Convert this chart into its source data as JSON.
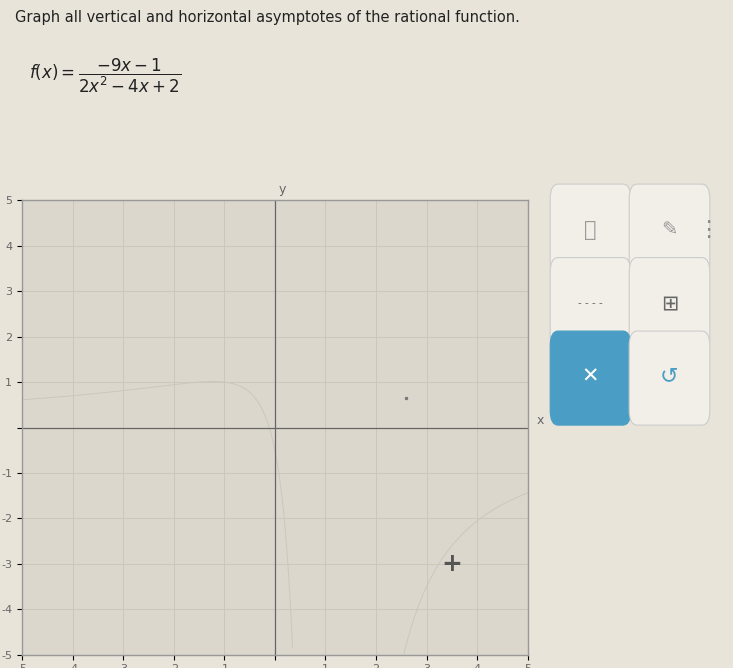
{
  "title_text": "Graph all vertical and horizontal asymptotes of the rational function.",
  "xmin": -5,
  "xmax": 5,
  "ymin": -5,
  "ymax": 5,
  "background_color": "#e8e4da",
  "grid_color": "#c9c5bb",
  "axis_color": "#666666",
  "tick_label_color": "#666666",
  "plot_bg": "#dbd7cd",
  "border_color": "#999999",
  "toolbar_bg": "#eeebe5",
  "toolbar_x_button_color": "#4a9dc4",
  "toolbar_undo_color": "#4a9dc4",
  "plus_color": "#555555",
  "fig_width": 7.33,
  "fig_height": 6.68,
  "dpi": 100
}
